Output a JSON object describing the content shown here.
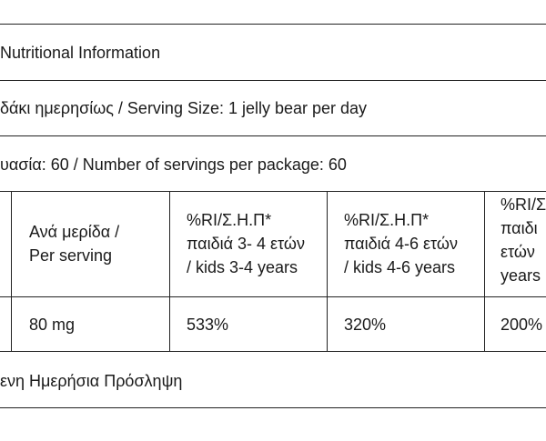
{
  "doc": {
    "title": "Nutritional Information",
    "serving_size": "δάκι ημερησίως / Serving Size: 1 jelly bear per day",
    "servings_per_package": "υασία: 60 / Number of servings per package: 60",
    "table": {
      "headers": [
        {
          "lines": [
            "Ανά μερίδα /",
            "Per serving"
          ]
        },
        {
          "lines": [
            "%RI/Σ.Η.Π*",
            "παιδιά 3- 4 ετών",
            "/ kids 3-4 years"
          ]
        },
        {
          "lines": [
            "%RI/Σ.Η.Π*",
            "παιδιά 4-6 ετών",
            "/ kids 4-6 years"
          ]
        },
        {
          "lines": [
            "%RI/Σ",
            "παιδι",
            "ετών",
            "years"
          ]
        }
      ],
      "row": [
        "80 mg",
        "533%",
        "320%",
        "200%"
      ]
    },
    "footnote": "ενη Ημερήσια Πρόσληψη"
  }
}
